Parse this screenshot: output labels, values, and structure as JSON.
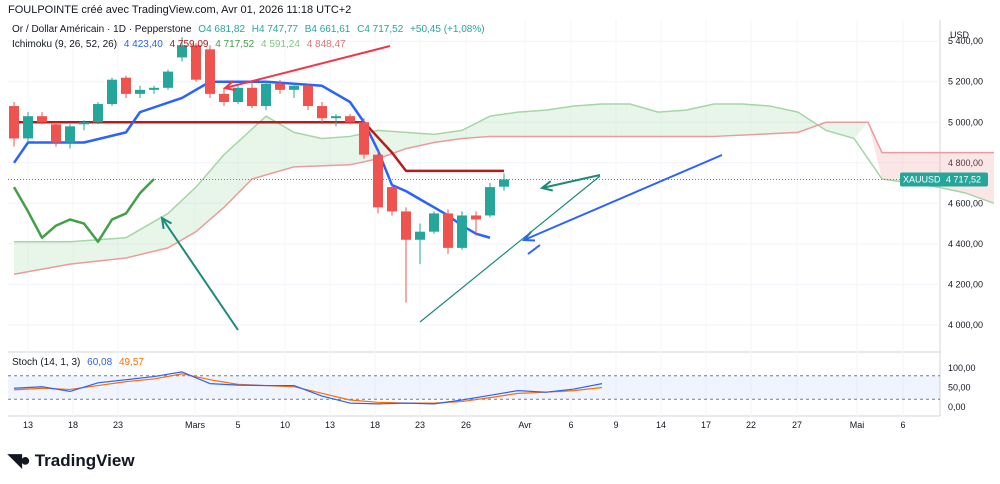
{
  "header": {
    "created_by": "FOULPOINTE créé avec TradingView.com, Avr 01, 2026 11:18 UTC+2"
  },
  "legend": {
    "symbol": "Or / Dollar Américain · 1D · Pepperstone",
    "open": "O4 681,82",
    "high": "H4 747,77",
    "low": "B4 661,61",
    "close": "C4 717,52",
    "change": "+50,45 (+1,08%)",
    "ichimoku_label": "Ichimoku (9, 26, 52, 26)",
    "ichimoku_values": [
      "4 423,40",
      "4 759,09",
      "4 717,52",
      "4 591,24",
      "4 848,47"
    ],
    "stoch_label": "Stoch (14, 1, 3)",
    "stoch_values": [
      "60,08",
      "49,57"
    ]
  },
  "price_axis": {
    "currency": "USD",
    "ticks": [
      "5 400,00",
      "5 200,00",
      "5 000,00",
      "4 800,00",
      "4 600,00",
      "4 400,00",
      "4 200,00",
      "4 000,00"
    ],
    "last_symbol": "XAUUSD",
    "last_price": "4 717,52"
  },
  "stoch_axis": {
    "ticks": [
      "100,00",
      "50,00",
      "0,00"
    ]
  },
  "time_axis": {
    "labels": [
      "13",
      "18",
      "23",
      "Mars",
      "5",
      "10",
      "13",
      "18",
      "23",
      "26",
      "Avr",
      "6",
      "9",
      "14",
      "17",
      "22",
      "27",
      "Mai",
      "6"
    ]
  },
  "brand": {
    "name": "TradingView"
  },
  "colors": {
    "up": "#26a69a",
    "down": "#ef5350",
    "conversion": "#2962ff",
    "base": "#b71c1c",
    "lagging": "#43a047",
    "span_a": "#a5d6a7",
    "span_b": "#ef9a9a",
    "stoch_k": "#2962ff",
    "stoch_d": "#ff6d00"
  },
  "chart_data": {
    "type": "candlestick",
    "title": "Or / Dollar Américain · 1D · Pepperstone",
    "ylabel": "USD",
    "ylim": [
      3950,
      5480
    ],
    "candles": [
      {
        "date": "13",
        "o": 5080,
        "h": 5100,
        "l": 4880,
        "c": 4920
      },
      {
        "date": "14",
        "o": 4920,
        "h": 5050,
        "l": 4900,
        "c": 5030
      },
      {
        "date": "17",
        "o": 5030,
        "h": 5050,
        "l": 4990,
        "c": 5000
      },
      {
        "date": "18",
        "o": 4990,
        "h": 5000,
        "l": 4880,
        "c": 4900
      },
      {
        "date": "19",
        "o": 4900,
        "h": 4990,
        "l": 4870,
        "c": 4980
      },
      {
        "date": "20",
        "o": 4990,
        "h": 5010,
        "l": 4960,
        "c": 5000
      },
      {
        "date": "21",
        "o": 5000,
        "h": 5100,
        "l": 4990,
        "c": 5090
      },
      {
        "date": "23",
        "o": 5090,
        "h": 5220,
        "l": 5080,
        "c": 5210
      },
      {
        "date": "24",
        "o": 5220,
        "h": 5230,
        "l": 5120,
        "c": 5140
      },
      {
        "date": "25",
        "o": 5140,
        "h": 5180,
        "l": 5120,
        "c": 5160
      },
      {
        "date": "26",
        "o": 5160,
        "h": 5180,
        "l": 5140,
        "c": 5170
      },
      {
        "date": "27",
        "o": 5170,
        "h": 5260,
        "l": 5160,
        "c": 5250
      },
      {
        "date": "02",
        "o": 5320,
        "h": 5420,
        "l": 5300,
        "c": 5380
      },
      {
        "date": "03",
        "o": 5380,
        "h": 5390,
        "l": 5200,
        "c": 5210
      },
      {
        "date": "04",
        "o": 5360,
        "h": 5380,
        "l": 5120,
        "c": 5140
      },
      {
        "date": "05",
        "o": 5140,
        "h": 5170,
        "l": 5080,
        "c": 5100
      },
      {
        "date": "06",
        "o": 5100,
        "h": 5180,
        "l": 5090,
        "c": 5170
      },
      {
        "date": "09",
        "o": 5170,
        "h": 5200,
        "l": 5070,
        "c": 5080
      },
      {
        "date": "10",
        "o": 5080,
        "h": 5200,
        "l": 5060,
        "c": 5190
      },
      {
        "date": "11",
        "o": 5190,
        "h": 5210,
        "l": 5140,
        "c": 5160
      },
      {
        "date": "12",
        "o": 5160,
        "h": 5190,
        "l": 5120,
        "c": 5180
      },
      {
        "date": "13",
        "o": 5180,
        "h": 5190,
        "l": 5060,
        "c": 5080
      },
      {
        "date": "16",
        "o": 5080,
        "h": 5100,
        "l": 5000,
        "c": 5020
      },
      {
        "date": "17",
        "o": 5020,
        "h": 5040,
        "l": 4980,
        "c": 5030
      },
      {
        "date": "18",
        "o": 5030,
        "h": 5040,
        "l": 4990,
        "c": 5000
      },
      {
        "date": "19",
        "o": 5000,
        "h": 5020,
        "l": 4820,
        "c": 4840
      },
      {
        "date": "20",
        "o": 4840,
        "h": 4860,
        "l": 4550,
        "c": 4580
      },
      {
        "date": "23",
        "o": 4680,
        "h": 4690,
        "l": 4540,
        "c": 4560
      },
      {
        "date": "24",
        "o": 4560,
        "h": 4580,
        "l": 4110,
        "c": 4420
      },
      {
        "date": "25",
        "o": 4420,
        "h": 4500,
        "l": 4300,
        "c": 4460
      },
      {
        "date": "26",
        "o": 4460,
        "h": 4560,
        "l": 4450,
        "c": 4550
      },
      {
        "date": "27",
        "o": 4550,
        "h": 4570,
        "l": 4350,
        "c": 4380
      },
      {
        "date": "30",
        "o": 4380,
        "h": 4560,
        "l": 4370,
        "c": 4540
      },
      {
        "date": "31",
        "o": 4540,
        "h": 4560,
        "l": 4440,
        "c": 4520
      },
      {
        "date": "31b",
        "o": 4540,
        "h": 4700,
        "l": 4530,
        "c": 4680
      },
      {
        "date": "01",
        "o": 4682,
        "h": 4748,
        "l": 4662,
        "c": 4718
      }
    ],
    "ichimoku": {
      "conversion": [
        [
          0,
          4800
        ],
        [
          1,
          4900
        ],
        [
          5,
          4900
        ],
        [
          8,
          4950
        ],
        [
          9,
          5050
        ],
        [
          12,
          5120
        ],
        [
          13,
          5160
        ],
        [
          14,
          5200
        ],
        [
          18,
          5200
        ],
        [
          22,
          5180
        ],
        [
          24,
          5100
        ],
        [
          25,
          5000
        ],
        [
          26,
          4860
        ],
        [
          27,
          4690
        ],
        [
          28,
          4660
        ],
        [
          29,
          4620
        ],
        [
          30,
          4580
        ],
        [
          31,
          4540
        ],
        [
          32,
          4490
        ],
        [
          33,
          4450
        ],
        [
          34,
          4430
        ]
      ],
      "base": [
        [
          0,
          5000
        ],
        [
          25,
          5000
        ],
        [
          27,
          4850
        ],
        [
          28,
          4760
        ],
        [
          35,
          4760
        ]
      ],
      "lagging": [
        [
          0,
          4680
        ],
        [
          1,
          4560
        ],
        [
          2,
          4430
        ],
        [
          3,
          4490
        ],
        [
          4,
          4520
        ],
        [
          5,
          4500
        ],
        [
          6,
          4410
        ],
        [
          7,
          4520
        ],
        [
          8,
          4550
        ],
        [
          9,
          4650
        ],
        [
          10,
          4720
        ]
      ],
      "span_a": [
        [
          0,
          4410
        ],
        [
          4,
          4410
        ],
        [
          8,
          4430
        ],
        [
          11,
          4550
        ],
        [
          13,
          4680
        ],
        [
          15,
          4840
        ],
        [
          18,
          5030
        ],
        [
          20,
          4950
        ],
        [
          22,
          4920
        ],
        [
          24,
          4930
        ],
        [
          26,
          4960
        ],
        [
          28,
          4950
        ],
        [
          30,
          4940
        ],
        [
          32,
          4960
        ],
        [
          34,
          5030
        ],
        [
          36,
          5050
        ],
        [
          38,
          5060
        ],
        [
          40,
          5080
        ],
        [
          42,
          5090
        ],
        [
          44,
          5090
        ],
        [
          46,
          5050
        ],
        [
          48,
          5060
        ],
        [
          50,
          5090
        ],
        [
          52,
          5090
        ],
        [
          54,
          5080
        ],
        [
          56,
          5050
        ],
        [
          58,
          4960
        ],
        [
          60,
          4920
        ],
        [
          62,
          4720
        ],
        [
          64,
          4700
        ],
        [
          66,
          4680
        ],
        [
          68,
          4650
        ],
        [
          70,
          4600
        ]
      ],
      "span_b": [
        [
          0,
          4250
        ],
        [
          4,
          4300
        ],
        [
          8,
          4330
        ],
        [
          11,
          4380
        ],
        [
          13,
          4460
        ],
        [
          15,
          4580
        ],
        [
          17,
          4720
        ],
        [
          20,
          4780
        ],
        [
          24,
          4790
        ],
        [
          26,
          4820
        ],
        [
          28,
          4870
        ],
        [
          30,
          4900
        ],
        [
          32,
          4920
        ],
        [
          34,
          4930
        ],
        [
          36,
          4930
        ],
        [
          50,
          4930
        ],
        [
          56,
          4950
        ],
        [
          58,
          5000
        ],
        [
          61,
          5000
        ],
        [
          62,
          4850
        ],
        [
          70,
          4850
        ]
      ]
    },
    "stoch": {
      "k": [
        [
          0,
          48
        ],
        [
          2,
          52
        ],
        [
          4,
          40
        ],
        [
          6,
          62
        ],
        [
          8,
          70
        ],
        [
          10,
          78
        ],
        [
          12,
          90
        ],
        [
          14,
          60
        ],
        [
          16,
          56
        ],
        [
          18,
          55
        ],
        [
          20,
          55
        ],
        [
          22,
          28
        ],
        [
          24,
          10
        ],
        [
          26,
          8
        ],
        [
          28,
          10
        ],
        [
          30,
          8
        ],
        [
          32,
          18
        ],
        [
          34,
          30
        ],
        [
          36,
          42
        ],
        [
          38,
          38
        ],
        [
          40,
          46
        ],
        [
          42,
          60
        ]
      ],
      "d": [
        [
          0,
          44
        ],
        [
          2,
          48
        ],
        [
          4,
          45
        ],
        [
          6,
          55
        ],
        [
          8,
          65
        ],
        [
          10,
          72
        ],
        [
          12,
          85
        ],
        [
          14,
          70
        ],
        [
          16,
          58
        ],
        [
          18,
          55
        ],
        [
          20,
          52
        ],
        [
          22,
          35
        ],
        [
          24,
          18
        ],
        [
          26,
          12
        ],
        [
          28,
          10
        ],
        [
          30,
          10
        ],
        [
          32,
          14
        ],
        [
          34,
          24
        ],
        [
          36,
          35
        ],
        [
          38,
          38
        ],
        [
          40,
          42
        ],
        [
          42,
          50
        ]
      ],
      "ylim": [
        0,
        100
      ],
      "bands": [
        80,
        20
      ]
    }
  }
}
